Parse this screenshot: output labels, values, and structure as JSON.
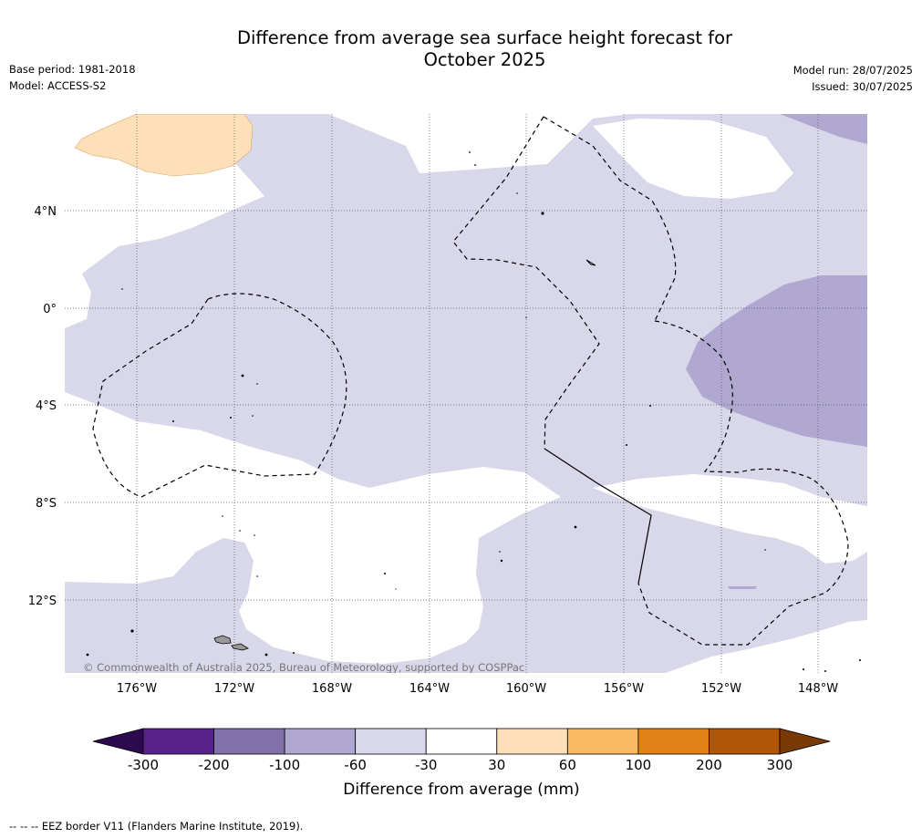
{
  "title_line1": "Difference from average sea surface height forecast for",
  "title_line2": "October 2025",
  "base_period": "Base period: 1981-2018",
  "model": "Model: ACCESS-S2",
  "model_run": "Model run: 28/07/2025",
  "issued": "Issued: 30/07/2025",
  "copyright": "© Commonwealth of Australia 2025, Bureau of Meteorology, supported by COSPPac",
  "lat_labels": [
    "4°N",
    "0°",
    "4°S",
    "8°S",
    "12°S"
  ],
  "lon_labels": [
    "176°W",
    "172°W",
    "168°W",
    "164°W",
    "160°W",
    "156°W",
    "152°W",
    "148°W"
  ],
  "colorbar": {
    "title": "Difference from average (mm)",
    "tick_labels": [
      "-300",
      "-200",
      "-100",
      "-60",
      "-30",
      "30",
      "60",
      "100",
      "200",
      "300"
    ],
    "colors": [
      "#2d0a4e",
      "#57238a",
      "#8171ab",
      "#b0a8d0",
      "#d8d8ea",
      "#ffffff",
      "#fde0b7",
      "#f9b862",
      "#e08217",
      "#b05607",
      "#7a3a05"
    ]
  },
  "colors": {
    "ocean_light_purple": "#d8d8ea",
    "ocean_mid_purple": "#b0a8d0",
    "positive_light_orange": "#fde0b7",
    "land": "#999999"
  },
  "footer_note": "--  --  -- EEZ border V11 (Flanders Marine Institute, 2019)."
}
